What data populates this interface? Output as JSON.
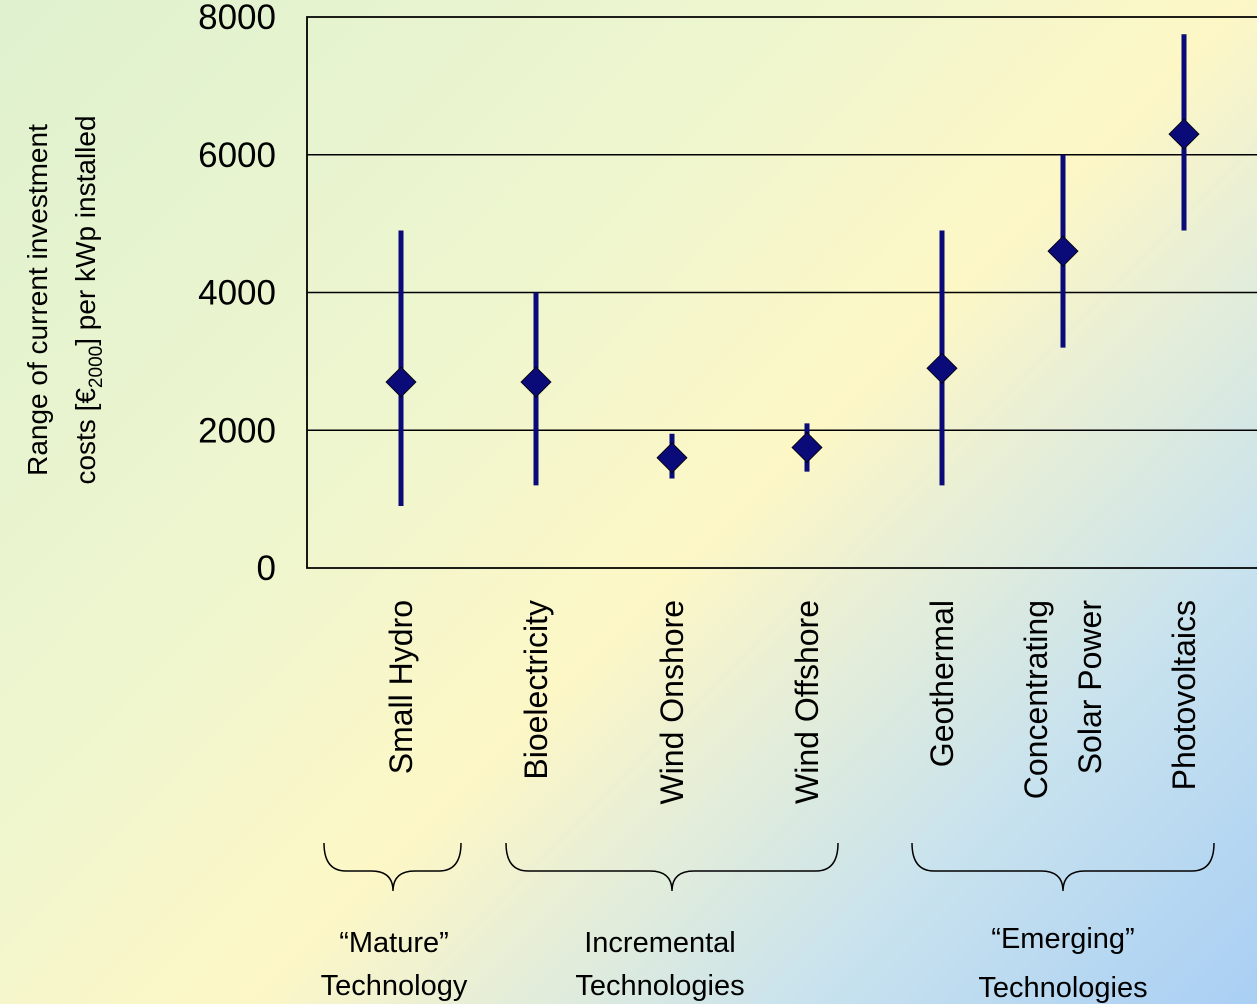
{
  "chart_data": {
    "type": "scatter",
    "categories": [
      "Small Hydro",
      "Bioelectricity",
      "Wind Onshore",
      "Wind Offshore",
      "Geothermal",
      "Concentrating Solar Power",
      "Photovoltaics"
    ],
    "category_lines": [
      [
        "Small Hydro"
      ],
      [
        "Bioelectricity"
      ],
      [
        "Wind Onshore"
      ],
      [
        "Wind Offshore"
      ],
      [
        "Geothermal"
      ],
      [
        "Concentrating",
        "Solar Power"
      ],
      [
        "Photovoltaics"
      ]
    ],
    "values": [
      2700,
      2700,
      1600,
      1750,
      2900,
      4600,
      6300
    ],
    "ranges": [
      [
        900,
        4900
      ],
      [
        1200,
        4000
      ],
      [
        1300,
        1950
      ],
      [
        1400,
        2100
      ],
      [
        1200,
        4900
      ],
      [
        3200,
        6000
      ],
      [
        4900,
        7750
      ]
    ],
    "ylim": [
      0,
      8000
    ],
    "yticks": [
      0,
      2000,
      4000,
      6000,
      8000
    ],
    "ylabel_lines": [
      "Range of current investment",
      "costs [€",
      "2000",
      "] per kWp installed"
    ],
    "grid": true,
    "series_color": "#0a0a78",
    "groups": [
      {
        "lines": [
          "“Mature”",
          "Technology"
        ],
        "categories": [
          "Small Hydro"
        ]
      },
      {
        "lines": [
          "Incremental",
          "Technologies"
        ],
        "categories": [
          "Bioelectricity",
          "Wind Onshore",
          "Wind Offshore"
        ]
      },
      {
        "lines": [
          "“Emerging”",
          "Technologies"
        ],
        "categories": [
          "Geothermal",
          "Concentrating Solar Power",
          "Photovoltaics"
        ]
      }
    ]
  }
}
